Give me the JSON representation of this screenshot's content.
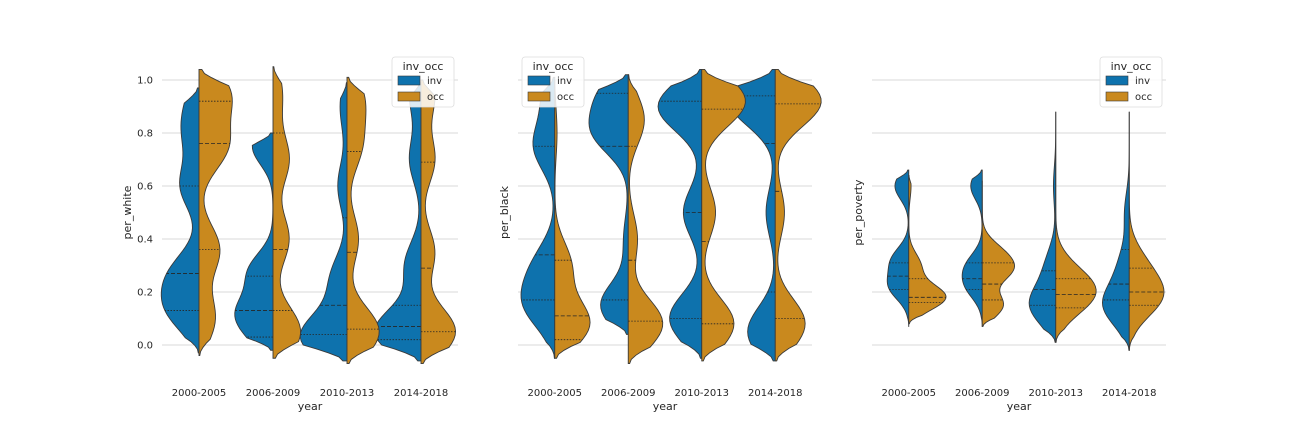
{
  "colors": {
    "inv": "#0e72ad",
    "occ": "#c9891e",
    "grid": "#cccccc",
    "text": "#262626"
  },
  "chart_data": [
    {
      "type": "violin",
      "split": true,
      "xlabel": "year",
      "ylabel": "per_white",
      "categories": [
        "2000-2005",
        "2006-2009",
        "2010-2013",
        "2014-2018"
      ],
      "yticks": [
        0.0,
        0.2,
        0.4,
        0.6,
        0.8,
        1.0
      ],
      "ytick_labels": [
        "0.0",
        "0.2",
        "0.4",
        "0.6",
        "0.8",
        "1.0"
      ],
      "ylim": [
        -0.1,
        1.12
      ],
      "grid": true,
      "legend": {
        "title": "inv_occ",
        "entries": [
          "inv",
          "occ"
        ],
        "placement": "top-right"
      },
      "series": [
        {
          "name": "inv",
          "violins": [
            {
              "min": -0.03,
              "max": 0.97,
              "q1": 0.13,
              "q2": 0.27,
              "q3": 0.6,
              "modes": [
                [
                  0.13,
                  0.6
                ],
                [
                  0.27,
                  0.55
                ],
                [
                  0.6,
                  0.4
                ],
                [
                  0.8,
                  0.3
                ],
                [
                  0.93,
                  0.2
                ]
              ]
            },
            {
              "min": -0.02,
              "max": 0.8,
              "q1": 0.03,
              "q2": 0.13,
              "q3": 0.26,
              "modes": [
                [
                  0.03,
                  0.35
                ],
                [
                  0.13,
                  0.65
                ],
                [
                  0.28,
                  0.5
                ],
                [
                  0.75,
                  0.45
                ]
              ]
            },
            {
              "min": -0.06,
              "max": 0.99,
              "q1": 0.04,
              "q2": 0.15,
              "q3": 0.48,
              "modes": [
                [
                  0.03,
                  1.0
                ],
                [
                  0.25,
                  0.35
                ],
                [
                  0.6,
                  0.2
                ],
                [
                  0.9,
                  0.15
                ]
              ]
            },
            {
              "min": -0.06,
              "max": 0.99,
              "q1": 0.02,
              "q2": 0.07,
              "q3": 0.15,
              "modes": [
                [
                  0.05,
                  1.0
                ],
                [
                  0.3,
                  0.35
                ],
                [
                  0.7,
                  0.25
                ],
                [
                  0.95,
                  0.25
                ]
              ]
            }
          ]
        },
        {
          "name": "occ",
          "violins": [
            {
              "min": -0.04,
              "max": 1.04,
              "q1": 0.36,
              "q2": 0.76,
              "q3": 0.92,
              "modes": [
                [
                  0.1,
                  0.35
                ],
                [
                  0.36,
                  0.45
                ],
                [
                  0.75,
                  0.6
                ],
                [
                  0.95,
                  0.65
                ]
              ]
            },
            {
              "min": -0.05,
              "max": 1.05,
              "q1": 0.13,
              "q2": 0.36,
              "q3": 0.8,
              "modes": [
                [
                  0.05,
                  0.6
                ],
                [
                  0.4,
                  0.35
                ],
                [
                  0.7,
                  0.35
                ],
                [
                  0.95,
                  0.2
                ]
              ]
            },
            {
              "min": -0.07,
              "max": 1.01,
              "q1": 0.06,
              "q2": 0.35,
              "q3": 0.73,
              "modes": [
                [
                  0.05,
                  0.7
                ],
                [
                  0.4,
                  0.25
                ],
                [
                  0.75,
                  0.3
                ],
                [
                  0.93,
                  0.35
                ]
              ]
            },
            {
              "min": -0.07,
              "max": 1.0,
              "q1": 0.05,
              "q2": 0.29,
              "q3": 0.69,
              "modes": [
                [
                  0.05,
                  0.75
                ],
                [
                  0.35,
                  0.3
                ],
                [
                  0.7,
                  0.3
                ],
                [
                  0.95,
                  0.3
                ]
              ]
            }
          ]
        }
      ]
    },
    {
      "type": "violin",
      "split": true,
      "xlabel": "year",
      "ylabel": "per_black",
      "categories": [
        "2000-2005",
        "2006-2009",
        "2010-2013",
        "2014-2018"
      ],
      "yticks": [
        0.0,
        0.2,
        0.4,
        0.6,
        0.8,
        1.0
      ],
      "ytick_labels": [
        "",
        "",
        "",
        "",
        "",
        ""
      ],
      "ylim": [
        -0.1,
        1.12
      ],
      "grid": true,
      "legend": {
        "title": "inv_occ",
        "entries": [
          "inv",
          "occ"
        ],
        "placement": "top-left"
      },
      "series": [
        {
          "name": "inv",
          "violins": [
            {
              "min": -0.05,
              "max": 1.01,
              "q1": 0.17,
              "q2": 0.34,
              "q3": 0.75,
              "modes": [
                [
                  0.15,
                  0.6
                ],
                [
                  0.3,
                  0.4
                ],
                [
                  0.75,
                  0.45
                ],
                [
                  0.95,
                  0.25
                ]
              ]
            },
            {
              "min": 0.04,
              "max": 1.02,
              "q1": 0.17,
              "q2": 0.75,
              "q3": 0.95,
              "modes": [
                [
                  0.15,
                  0.6
                ],
                [
                  0.4,
                  0.1
                ],
                [
                  0.8,
                  0.7
                ],
                [
                  0.95,
                  0.55
                ]
              ]
            },
            {
              "min": -0.05,
              "max": 1.04,
              "q1": 0.1,
              "q2": 0.5,
              "q3": 0.92,
              "modes": [
                [
                  0.1,
                  0.7
                ],
                [
                  0.5,
                  0.4
                ],
                [
                  0.9,
                  0.95
                ]
              ]
            },
            {
              "min": -0.06,
              "max": 1.04,
              "q1": 0.2,
              "q2": 0.76,
              "q3": 0.94,
              "modes": [
                [
                  0.05,
                  0.6
                ],
                [
                  0.5,
                  0.2
                ],
                [
                  0.92,
                  1.0
                ]
              ]
            }
          ]
        },
        {
          "name": "occ",
          "violins": [
            {
              "min": -0.05,
              "max": 1.0,
              "q1": 0.02,
              "q2": 0.11,
              "q3": 0.32,
              "modes": [
                [
                  0.08,
                  0.75
                ],
                [
                  0.3,
                  0.35
                ],
                [
                  0.8,
                  0.05
                ]
              ]
            },
            {
              "min": -0.07,
              "max": 1.02,
              "q1": 0.09,
              "q2": 0.32,
              "q3": 0.75,
              "modes": [
                [
                  0.08,
                  0.75
                ],
                [
                  0.4,
                  0.2
                ],
                [
                  0.85,
                  0.35
                ]
              ]
            },
            {
              "min": -0.06,
              "max": 1.04,
              "q1": 0.08,
              "q2": 0.39,
              "q3": 0.89,
              "modes": [
                [
                  0.08,
                  0.7
                ],
                [
                  0.5,
                  0.3
                ],
                [
                  0.92,
                  0.95
                ]
              ]
            },
            {
              "min": -0.06,
              "max": 1.04,
              "q1": 0.1,
              "q2": 0.58,
              "q3": 0.91,
              "modes": [
                [
                  0.08,
                  0.65
                ],
                [
                  0.5,
                  0.2
                ],
                [
                  0.92,
                  1.0
                ]
              ]
            }
          ]
        }
      ]
    },
    {
      "type": "violin",
      "split": true,
      "xlabel": "year",
      "ylabel": "per_poverty",
      "categories": [
        "2000-2005",
        "2006-2009",
        "2010-2013",
        "2014-2018"
      ],
      "yticks": [
        0.0,
        0.2,
        0.4,
        0.6,
        0.8,
        1.0
      ],
      "ytick_labels": [
        "",
        "",
        "",
        "",
        "",
        ""
      ],
      "ylim": [
        -0.1,
        1.12
      ],
      "grid": true,
      "legend": {
        "title": "inv_occ",
        "entries": [
          "inv",
          "occ"
        ],
        "placement": "top-right"
      },
      "series": [
        {
          "name": "inv",
          "violins": [
            {
              "min": 0.07,
              "max": 0.66,
              "q1": 0.21,
              "q2": 0.26,
              "q3": 0.31,
              "modes": [
                [
                  0.22,
                  0.4
                ],
                [
                  0.32,
                  0.35
                ],
                [
                  0.6,
                  0.3
                ]
              ]
            },
            {
              "min": 0.07,
              "max": 0.66,
              "q1": 0.21,
              "q2": 0.25,
              "q3": 0.31,
              "modes": [
                [
                  0.22,
                  0.3
                ],
                [
                  0.3,
                  0.3
                ],
                [
                  0.6,
                  0.25
                ]
              ]
            },
            {
              "min": 0.01,
              "max": 0.88,
              "q1": 0.15,
              "q2": 0.21,
              "q3": 0.28,
              "modes": [
                [
                  0.15,
                  0.55
                ],
                [
                  0.3,
                  0.2
                ],
                [
                  0.6,
                  0.05
                ]
              ]
            },
            {
              "min": -0.02,
              "max": 0.88,
              "q1": 0.17,
              "q2": 0.23,
              "q3": 0.36,
              "modes": [
                [
                  0.15,
                  0.55
                ],
                [
                  0.3,
                  0.2
                ],
                [
                  0.5,
                  0.1
                ]
              ]
            }
          ]
        },
        {
          "name": "occ",
          "violins": [
            {
              "min": 0.08,
              "max": 0.64,
              "q1": 0.16,
              "q2": 0.18,
              "q3": 0.25,
              "modes": [
                [
                  0.18,
                  0.8
                ],
                [
                  0.3,
                  0.25
                ],
                [
                  0.6,
                  0.05
                ]
              ]
            },
            {
              "min": 0.07,
              "max": 0.62,
              "q1": 0.17,
              "q2": 0.23,
              "q3": 0.31,
              "modes": [
                [
                  0.15,
                  0.45
                ],
                [
                  0.28,
                  0.55
                ],
                [
                  0.35,
                  0.35
                ]
              ]
            },
            {
              "min": 0.01,
              "max": 0.88,
              "q1": 0.14,
              "q2": 0.19,
              "q3": 0.25,
              "modes": [
                [
                  0.18,
                  0.65
                ],
                [
                  0.26,
                  0.35
                ]
              ]
            },
            {
              "min": -0.02,
              "max": 0.88,
              "q1": 0.15,
              "q2": 0.2,
              "q3": 0.29,
              "modes": [
                [
                  0.18,
                  0.65
                ],
                [
                  0.3,
                  0.3
                ]
              ]
            }
          ]
        }
      ]
    }
  ]
}
